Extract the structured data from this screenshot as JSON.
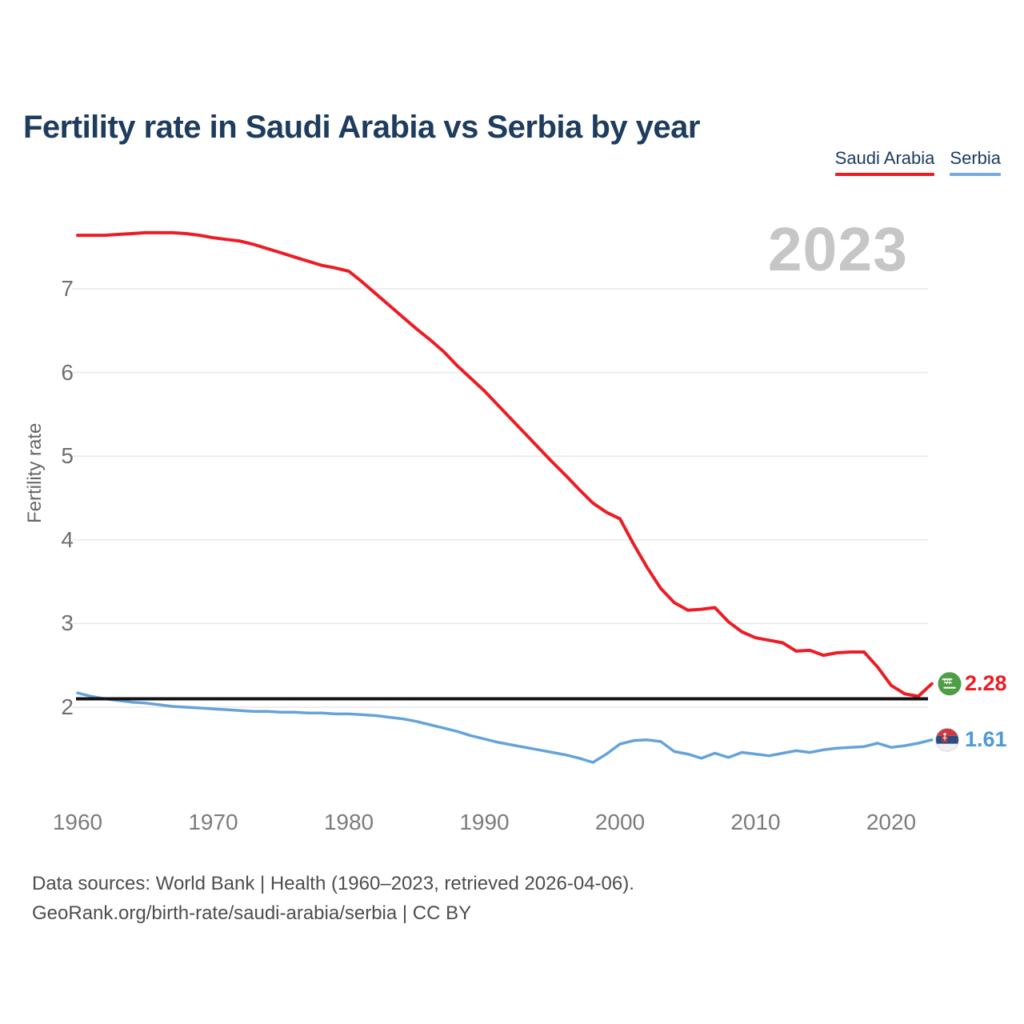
{
  "title": "Fertility rate in Saudi Arabia vs Serbia by year",
  "watermark": "2023",
  "legend": [
    {
      "label": "Saudi Arabia",
      "color": "#ed1c24"
    },
    {
      "label": "Serbia",
      "color": "#74abdc"
    }
  ],
  "y_axis": {
    "label": "Fertility rate",
    "ticks": [
      2,
      3,
      4,
      5,
      6,
      7
    ]
  },
  "x_axis": {
    "ticks": [
      1960,
      1970,
      1980,
      1990,
      2000,
      2010,
      2020
    ]
  },
  "end_labels": [
    {
      "series": "Saudi Arabia",
      "value": "2.28",
      "color": "#ed1c24",
      "flag": "saudi-arabia-flag"
    },
    {
      "series": "Serbia",
      "value": "1.61",
      "color": "#4e9ad9",
      "flag": "serbia-flag"
    }
  ],
  "footer": {
    "line1": "Data sources: World Bank | Health (1960–2023, retrieved 2026-04-06).",
    "line2": "GeoRank.org/birth-rate/saudi-arabia/serbia | CC BY"
  },
  "chart_data": {
    "type": "line",
    "title": "Fertility rate in Saudi Arabia vs Serbia by year",
    "xlabel": "",
    "ylabel": "Fertility rate",
    "x_range": [
      1960,
      2023
    ],
    "ylim": [
      1.2,
      7.9
    ],
    "yticks": [
      2,
      3,
      4,
      5,
      6,
      7
    ],
    "xticks": [
      1960,
      1970,
      1980,
      1990,
      2000,
      2010,
      2020
    ],
    "grid": "horizontal",
    "legend_position": "top-right",
    "annotations": {
      "watermark": "2023",
      "replacement_line": 2.1
    },
    "x": [
      1960,
      1961,
      1962,
      1963,
      1964,
      1965,
      1966,
      1967,
      1968,
      1969,
      1970,
      1971,
      1972,
      1973,
      1974,
      1975,
      1976,
      1977,
      1978,
      1979,
      1980,
      1981,
      1982,
      1983,
      1984,
      1985,
      1986,
      1987,
      1988,
      1989,
      1990,
      1991,
      1992,
      1993,
      1994,
      1995,
      1996,
      1997,
      1998,
      1999,
      2000,
      2001,
      2002,
      2003,
      2004,
      2005,
      2006,
      2007,
      2008,
      2009,
      2010,
      2011,
      2012,
      2013,
      2014,
      2015,
      2016,
      2017,
      2018,
      2019,
      2020,
      2021,
      2022,
      2023
    ],
    "series": [
      {
        "name": "Saudi Arabia",
        "color": "#ed1c24",
        "end_label": "2.28",
        "values": [
          7.64,
          7.64,
          7.64,
          7.65,
          7.66,
          7.67,
          7.67,
          7.67,
          7.66,
          7.64,
          7.61,
          7.59,
          7.57,
          7.53,
          7.48,
          7.43,
          7.38,
          7.33,
          7.28,
          7.25,
          7.21,
          7.08,
          6.94,
          6.8,
          6.66,
          6.52,
          6.39,
          6.25,
          6.08,
          5.93,
          5.78,
          5.61,
          5.44,
          5.27,
          5.1,
          4.93,
          4.77,
          4.6,
          4.44,
          4.33,
          4.25,
          3.95,
          3.67,
          3.42,
          3.25,
          3.16,
          3.17,
          3.19,
          3.02,
          2.9,
          2.83,
          2.8,
          2.77,
          2.67,
          2.68,
          2.62,
          2.65,
          2.66,
          2.66,
          2.48,
          2.26,
          2.16,
          2.13,
          2.28
        ]
      },
      {
        "name": "Serbia",
        "color": "#64a3da",
        "end_label": "1.61",
        "values": [
          2.17,
          2.13,
          2.1,
          2.08,
          2.06,
          2.05,
          2.03,
          2.01,
          2.0,
          1.99,
          1.98,
          1.97,
          1.96,
          1.95,
          1.95,
          1.94,
          1.94,
          1.93,
          1.93,
          1.92,
          1.92,
          1.91,
          1.9,
          1.88,
          1.86,
          1.83,
          1.79,
          1.75,
          1.71,
          1.66,
          1.62,
          1.58,
          1.55,
          1.52,
          1.49,
          1.46,
          1.43,
          1.39,
          1.34,
          1.44,
          1.56,
          1.6,
          1.61,
          1.59,
          1.47,
          1.44,
          1.39,
          1.45,
          1.4,
          1.46,
          1.44,
          1.42,
          1.45,
          1.48,
          1.46,
          1.49,
          1.51,
          1.52,
          1.53,
          1.57,
          1.52,
          1.54,
          1.57,
          1.61
        ]
      }
    ]
  }
}
